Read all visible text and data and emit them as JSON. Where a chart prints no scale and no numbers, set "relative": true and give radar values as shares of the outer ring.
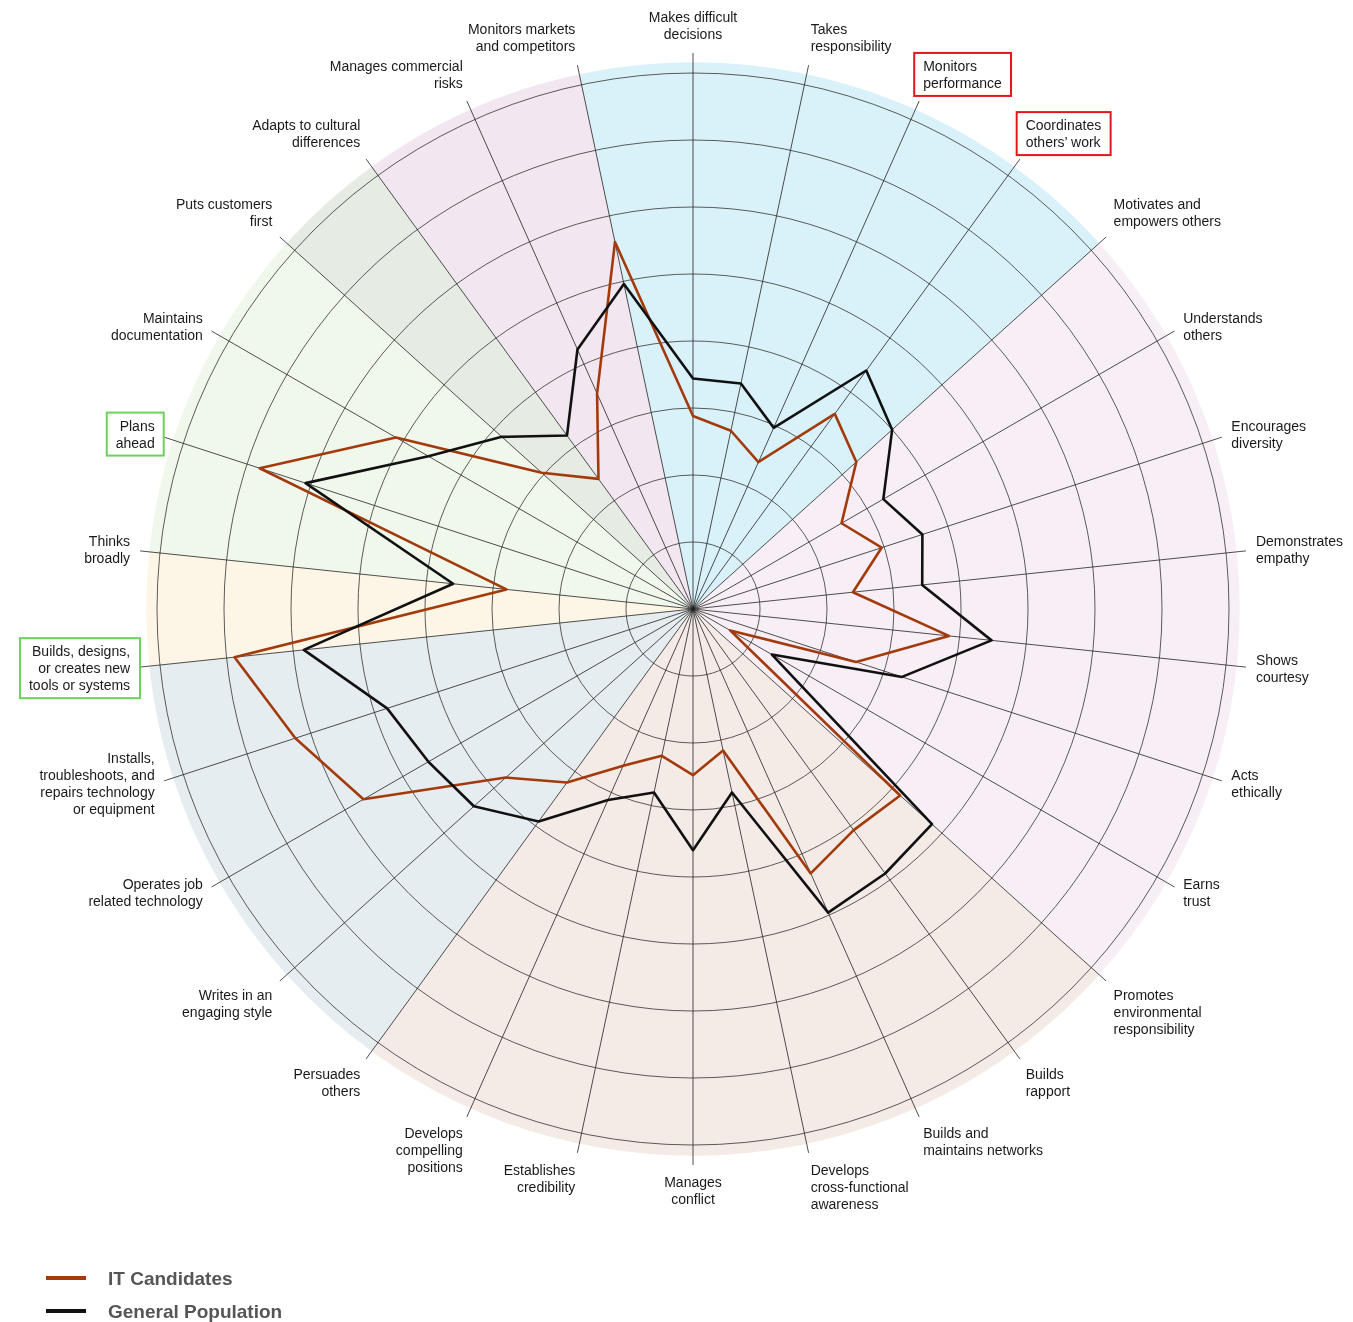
{
  "chart_data": {
    "type": "radar",
    "relative": true,
    "legend": "bottom left",
    "grid": true,
    "categories": [
      "Makes difficult decisions",
      "Takes responsibility",
      "Monitors performance",
      "Coordinates others’ work",
      "Motivates and empowers others",
      "Understands others",
      "Encourages diversity",
      "Demonstrates empathy",
      "Shows courtesy",
      "Acts ethically",
      "Earns trust",
      "Promotes environmental responsibility",
      "Builds rapport",
      "Builds and maintains networks",
      "Develops cross-functional awareness",
      "Manages conflict",
      "Establishes credibility",
      "Develops compelling positions",
      "Persuades others",
      "Writes in an engaging style",
      "Operates job related technology",
      "Installs, troubleshoots, and repairs technology or equipment",
      "Builds, designs, or creates new tools or systems",
      "Thinks broadly",
      "Plans ahead",
      "Maintains documentation",
      "Puts customers first",
      "Adapts to cultural differences",
      "Manages commercial risks",
      "Monitors markets and competitors"
    ],
    "series": [
      {
        "name": "IT Candidates",
        "color": "#a33a0b",
        "values": [
          0.36,
          0.34,
          0.3,
          0.45,
          0.41,
          0.32,
          0.37,
          0.3,
          0.48,
          0.32,
          0.08,
          0.52,
          0.51,
          0.54,
          0.27,
          0.31,
          0.28,
          0.32,
          0.4,
          0.47,
          0.71,
          0.78,
          0.86,
          0.35,
          0.85,
          0.64,
          0.38,
          0.3,
          0.44,
          0.7
        ]
      },
      {
        "name": "General Population",
        "color": "#111111",
        "values": [
          0.43,
          0.43,
          0.37,
          0.55,
          0.5,
          0.41,
          0.45,
          0.43,
          0.56,
          0.41,
          0.17,
          0.6,
          0.61,
          0.62,
          0.35,
          0.45,
          0.35,
          0.39,
          0.49,
          0.55,
          0.57,
          0.6,
          0.73,
          0.45,
          0.76,
          0.57,
          0.48,
          0.4,
          0.53,
          0.62
        ]
      }
    ]
  }
}
